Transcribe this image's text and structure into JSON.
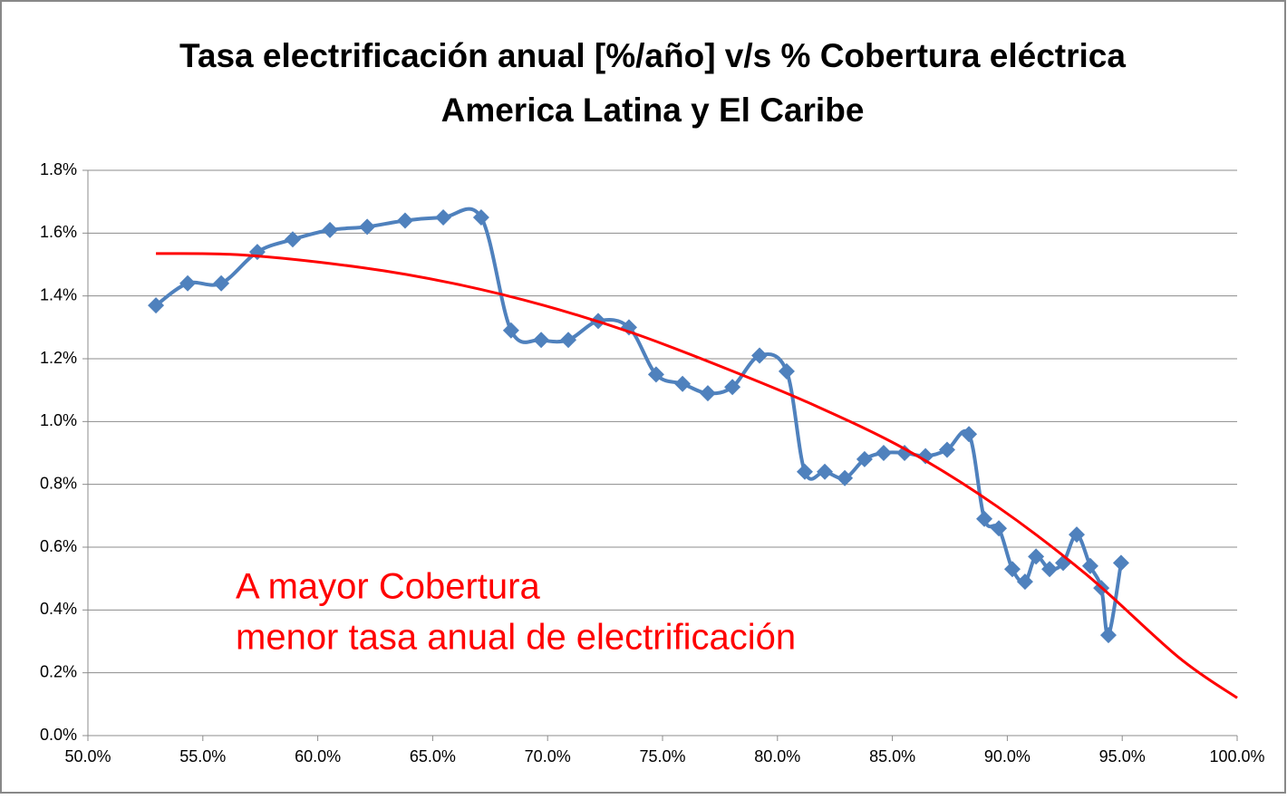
{
  "chart_data": {
    "type": "line",
    "title": "Tasa electrificación anual [%/año] v/s % Cobertura eléctrica",
    "subtitle": "America Latina y El Caribe",
    "annotations": [
      "A mayor Cobertura",
      "menor tasa anual de electrificación"
    ],
    "annotation_color": "#ff0000",
    "grid": true,
    "xlim": [
      50,
      100
    ],
    "ylim": [
      0,
      1.8
    ],
    "xticks": [
      {
        "value": 50,
        "label": "50.0%"
      },
      {
        "value": 55,
        "label": "55.0%"
      },
      {
        "value": 60,
        "label": "60.0%"
      },
      {
        "value": 65,
        "label": "65.0%"
      },
      {
        "value": 70,
        "label": "70.0%"
      },
      {
        "value": 75,
        "label": "75.0%"
      },
      {
        "value": 80,
        "label": "80.0%"
      },
      {
        "value": 85,
        "label": "85.0%"
      },
      {
        "value": 90,
        "label": "90.0%"
      },
      {
        "value": 95,
        "label": "95.0%"
      },
      {
        "value": 100,
        "label": "100.0%"
      }
    ],
    "yticks": [
      {
        "value": 0,
        "label": "0.0%"
      },
      {
        "value": 0.2,
        "label": "0.2%"
      },
      {
        "value": 0.4,
        "label": "0.4%"
      },
      {
        "value": 0.6,
        "label": "0.6%"
      },
      {
        "value": 0.8,
        "label": "0.8%"
      },
      {
        "value": 1.0,
        "label": "1.0%"
      },
      {
        "value": 1.2,
        "label": "1.2%"
      },
      {
        "value": 1.4,
        "label": "1.4%"
      },
      {
        "value": 1.6,
        "label": "1.6%"
      },
      {
        "value": 1.8,
        "label": "1.8%"
      }
    ],
    "series": [
      {
        "color": "#4f81bd",
        "marker": "diamond",
        "smooth": true,
        "x": [
          52.96,
          54.34,
          55.8,
          57.37,
          58.91,
          60.53,
          62.15,
          63.8,
          65.46,
          67.11,
          68.41,
          69.72,
          70.9,
          72.2,
          73.54,
          74.72,
          75.87,
          76.97,
          78.04,
          79.22,
          80.4,
          81.19,
          82.06,
          82.93,
          83.79,
          84.62,
          85.53,
          86.44,
          87.38,
          88.33,
          89.0,
          89.63,
          90.22,
          90.77,
          91.25,
          91.84,
          92.43,
          93.02,
          93.61,
          94.09,
          94.4,
          94.95
        ],
        "values": [
          1.37,
          1.44,
          1.44,
          1.54,
          1.58,
          1.61,
          1.62,
          1.64,
          1.65,
          1.65,
          1.29,
          1.26,
          1.26,
          1.32,
          1.3,
          1.15,
          1.12,
          1.09,
          1.11,
          1.21,
          1.16,
          0.84,
          0.84,
          0.82,
          0.88,
          0.9,
          0.9,
          0.89,
          0.91,
          0.96,
          0.69,
          0.66,
          0.53,
          0.49,
          0.57,
          0.53,
          0.55,
          0.64,
          0.54,
          0.47,
          0.32,
          0.55
        ]
      },
      {
        "color": "#ff0000",
        "marker": "none",
        "smooth": true,
        "x": [
          52.96,
          56.82,
          61.95,
          65.89,
          69.83,
          73.78,
          77.72,
          81.66,
          85.61,
          89.55,
          93.49,
          97.44,
          100
        ],
        "values": [
          1.535,
          1.53,
          1.49,
          1.44,
          1.37,
          1.28,
          1.17,
          1.05,
          0.91,
          0.73,
          0.51,
          0.25,
          0.12
        ]
      }
    ]
  }
}
